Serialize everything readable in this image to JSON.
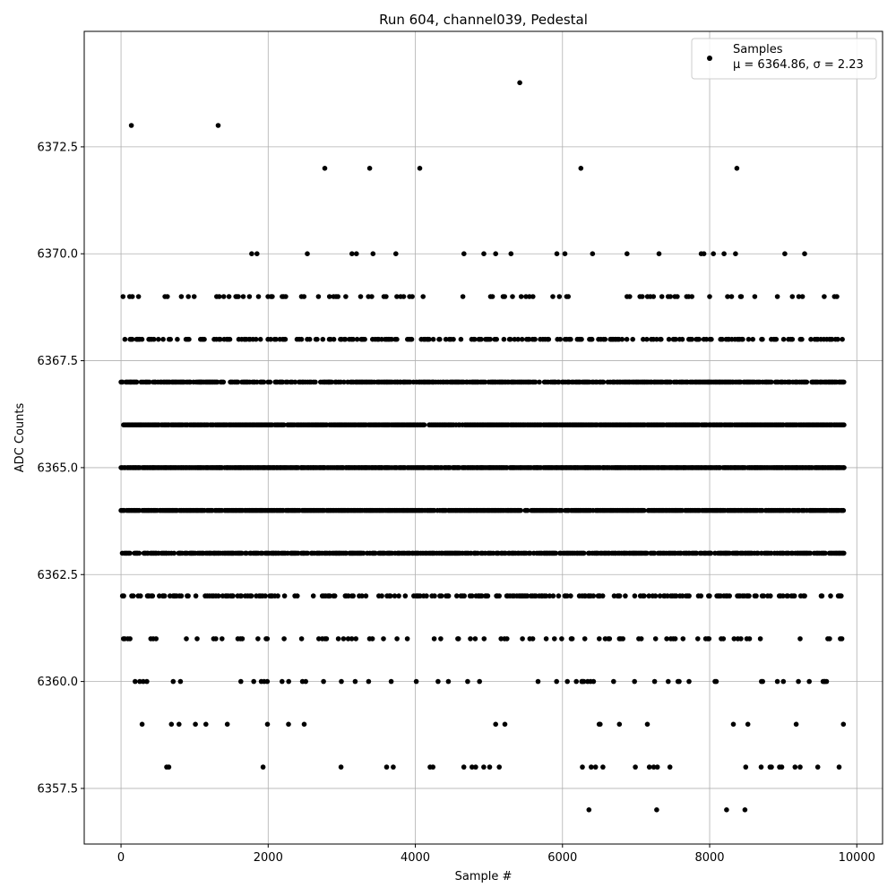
{
  "chart_data": {
    "type": "scatter",
    "title": "Run 604, channel039, Pedestal",
    "xlabel": "Sample #",
    "ylabel": "ADC Counts",
    "xlim": [
      -500,
      10350
    ],
    "ylim": [
      6356.2,
      6375.2
    ],
    "xticks": [
      0,
      2000,
      4000,
      6000,
      8000,
      10000
    ],
    "xtick_labels": [
      "0",
      "2000",
      "4000",
      "6000",
      "8000",
      "10000"
    ],
    "yticks": [
      6357.5,
      6360.0,
      6362.5,
      6365.0,
      6367.5,
      6370.0,
      6372.5
    ],
    "ytick_labels": [
      "6357.5",
      "6360.0",
      "6362.5",
      "6365.0",
      "6367.5",
      "6370.0",
      "6372.5"
    ],
    "grid": true,
    "legend_position": "top-right",
    "marker_color": "#000000",
    "series": [
      {
        "name": "Samples",
        "stats_label": "μ = 6364.86, σ = 2.23",
        "sample_count": 9830,
        "level_density": [
          {
            "y": 6370,
            "density": 0.03
          },
          {
            "y": 6369,
            "density": 0.12
          },
          {
            "y": 6368,
            "density": 0.38
          },
          {
            "y": 6367,
            "density": 0.75
          },
          {
            "y": 6366,
            "density": 0.92
          },
          {
            "y": 6365,
            "density": 0.95
          },
          {
            "y": 6364,
            "density": 0.92
          },
          {
            "y": 6363,
            "density": 0.75
          },
          {
            "y": 6362,
            "density": 0.38
          },
          {
            "y": 6361,
            "density": 0.13
          },
          {
            "y": 6360,
            "density": 0.07
          },
          {
            "y": 6359,
            "density": 0.025
          }
        ],
        "points": [
          {
            "x": 140,
            "y": 6373
          },
          {
            "x": 1320,
            "y": 6373
          },
          {
            "x": 5420,
            "y": 6374
          },
          {
            "x": 2770,
            "y": 6372
          },
          {
            "x": 3380,
            "y": 6372
          },
          {
            "x": 4060,
            "y": 6372
          },
          {
            "x": 6250,
            "y": 6372
          },
          {
            "x": 8370,
            "y": 6372
          },
          {
            "x": 620,
            "y": 6358
          },
          {
            "x": 650,
            "y": 6358
          },
          {
            "x": 1930,
            "y": 6358
          },
          {
            "x": 2990,
            "y": 6358
          },
          {
            "x": 3610,
            "y": 6358
          },
          {
            "x": 3700,
            "y": 6358
          },
          {
            "x": 4200,
            "y": 6358
          },
          {
            "x": 4240,
            "y": 6358
          },
          {
            "x": 4660,
            "y": 6358
          },
          {
            "x": 4770,
            "y": 6358
          },
          {
            "x": 4820,
            "y": 6358
          },
          {
            "x": 4930,
            "y": 6358
          },
          {
            "x": 5010,
            "y": 6358
          },
          {
            "x": 5140,
            "y": 6358
          },
          {
            "x": 6270,
            "y": 6358
          },
          {
            "x": 6390,
            "y": 6358
          },
          {
            "x": 6450,
            "y": 6358
          },
          {
            "x": 6550,
            "y": 6358
          },
          {
            "x": 6990,
            "y": 6358
          },
          {
            "x": 7180,
            "y": 6358
          },
          {
            "x": 7240,
            "y": 6358
          },
          {
            "x": 7290,
            "y": 6358
          },
          {
            "x": 7460,
            "y": 6358
          },
          {
            "x": 8490,
            "y": 6358
          },
          {
            "x": 8700,
            "y": 6358
          },
          {
            "x": 8820,
            "y": 6358
          },
          {
            "x": 8840,
            "y": 6358
          },
          {
            "x": 8950,
            "y": 6358
          },
          {
            "x": 8980,
            "y": 6358
          },
          {
            "x": 9160,
            "y": 6358
          },
          {
            "x": 9230,
            "y": 6358
          },
          {
            "x": 9470,
            "y": 6358
          },
          {
            "x": 9760,
            "y": 6358
          },
          {
            "x": 6360,
            "y": 6357
          },
          {
            "x": 7280,
            "y": 6357
          },
          {
            "x": 8230,
            "y": 6357
          },
          {
            "x": 8480,
            "y": 6357
          }
        ]
      }
    ]
  }
}
